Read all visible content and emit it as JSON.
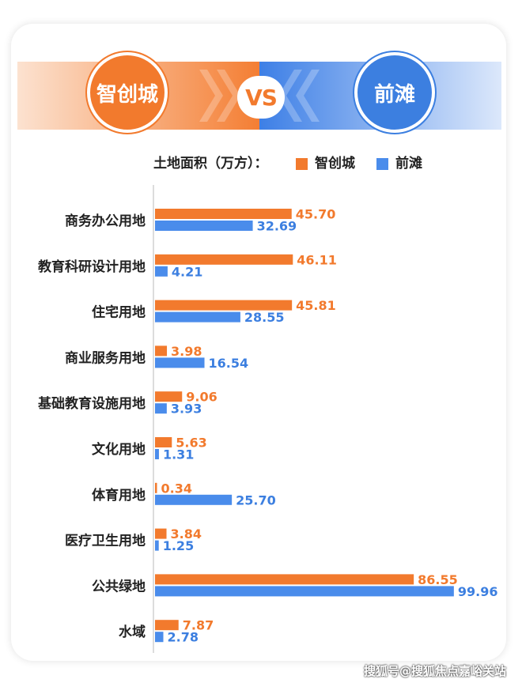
{
  "header": {
    "left_name": "智创城",
    "vs_label": "VS",
    "right_name": "前滩"
  },
  "colors": {
    "orange": "#F27A2D",
    "blue": "#4A8CEB",
    "orange_label": "#F27A2D",
    "blue_label": "#3C7FE0"
  },
  "legend": {
    "title": "土地面积（万方）：",
    "series_a": "智创城",
    "series_b": "前滩"
  },
  "chart_data": {
    "type": "bar",
    "orientation": "horizontal",
    "title": "",
    "xlabel": "",
    "ylabel": "",
    "legend_title": "土地面积（万方）：",
    "categories": [
      "商务办公用地",
      "教育科研设计用地",
      "住宅用地",
      "商业服务用地",
      "基础教育设施用地",
      "文化用地",
      "体育用地",
      "医疗卫生用地",
      "公共绿地",
      "水域"
    ],
    "series": [
      {
        "name": "智创城",
        "color": "#F27A2D",
        "values": [
          45.7,
          46.11,
          45.81,
          3.98,
          9.06,
          5.63,
          0.34,
          3.84,
          86.55,
          7.87
        ],
        "labels": [
          "45.70",
          "46.11",
          "45.81",
          "3.98",
          "9.06",
          "5.63",
          "0.34",
          "3.84",
          "86.55",
          "7.87"
        ]
      },
      {
        "name": "前滩",
        "color": "#4A8CEB",
        "values": [
          32.69,
          4.21,
          28.55,
          16.54,
          3.93,
          1.31,
          25.7,
          1.25,
          99.96,
          2.78
        ],
        "labels": [
          "32.69",
          "4.21",
          "28.55",
          "16.54",
          "3.93",
          "1.31",
          "25.70",
          "1.25",
          "99.96",
          "2.78"
        ]
      }
    ],
    "xlim": [
      0,
      100
    ],
    "grid": false,
    "legend_position": "top"
  },
  "watermark": "搜狐号@搜狐焦点嘉峪关站"
}
